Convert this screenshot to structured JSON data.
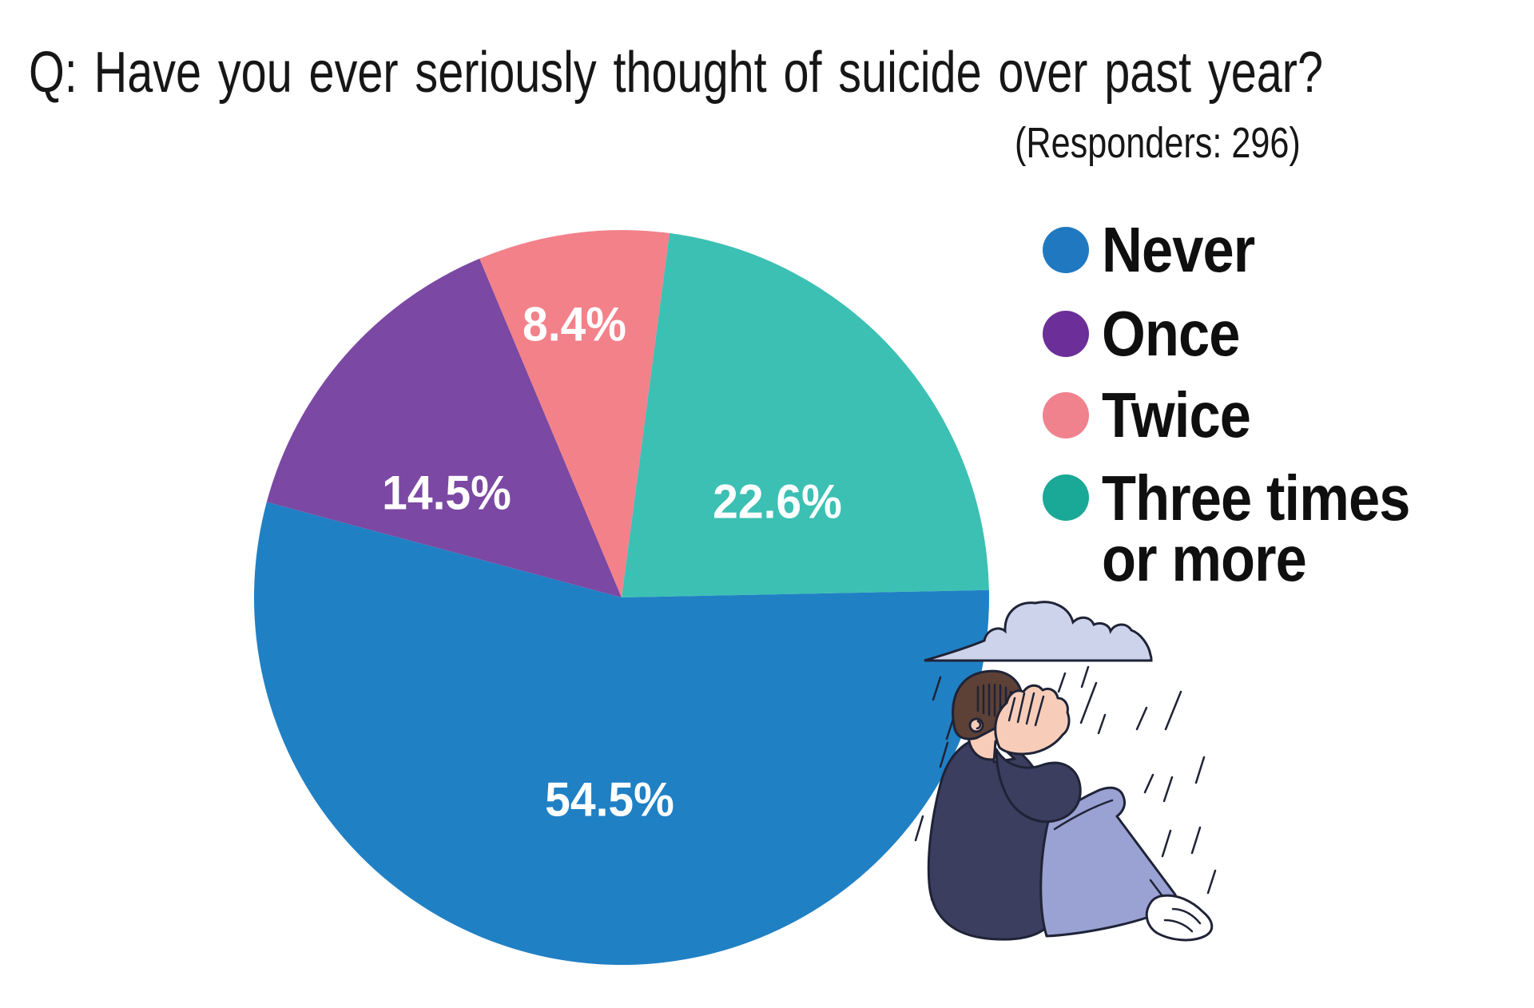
{
  "title": "Q: Have you ever seriously thought of suicide over past year?",
  "subtitle": "(Responders: 296)",
  "responders": "296",
  "chart_data": {
    "type": "pie",
    "title": "Q: Have you ever seriously thought of suicide over past year?",
    "note": "(Responders: 296)",
    "slices": [
      {
        "label": "Never",
        "value": 54.5,
        "display": "54.5%",
        "color": "#2080c4"
      },
      {
        "label": "Once",
        "value": 14.5,
        "display": "14.5%",
        "color": "#7b48a3"
      },
      {
        "label": "Twice",
        "value": 8.4,
        "display": "8.4%",
        "color": "#f2818a"
      },
      {
        "label": "Three times or more",
        "value": 22.6,
        "display": "22.6%",
        "color": "#3cc0b3"
      }
    ],
    "draw_order_clockwise_from_top": [
      "Three times or more",
      "Never",
      "Once",
      "Twice"
    ],
    "start_angle_deg": 7.5,
    "legend_position": "right",
    "value_label_style": "white bold inside slices"
  },
  "legend": {
    "items": [
      {
        "label": "Never",
        "color": "#2079c0",
        "icon": "circle-swatch"
      },
      {
        "label": "Once",
        "color": "#6c2f99",
        "icon": "circle-swatch"
      },
      {
        "label": "Twice",
        "color": "#f0828d",
        "icon": "circle-swatch"
      },
      {
        "label": "Three times or more",
        "lines": [
          "Three times",
          "or more"
        ],
        "color": "#1aa897",
        "icon": "circle-swatch"
      }
    ]
  },
  "illustration": {
    "icons": [
      "rain-cloud-icon",
      "sad-person-icon",
      "rain-lines-icon"
    ],
    "colors": {
      "cloud": "#cdd3ea",
      "outline": "#1f2337",
      "hair": "#5d4136",
      "skin": "#f7cdb9",
      "sweater": "#3b3e5e",
      "pants": "#9aa1d3",
      "sock": "#ffffff"
    }
  }
}
